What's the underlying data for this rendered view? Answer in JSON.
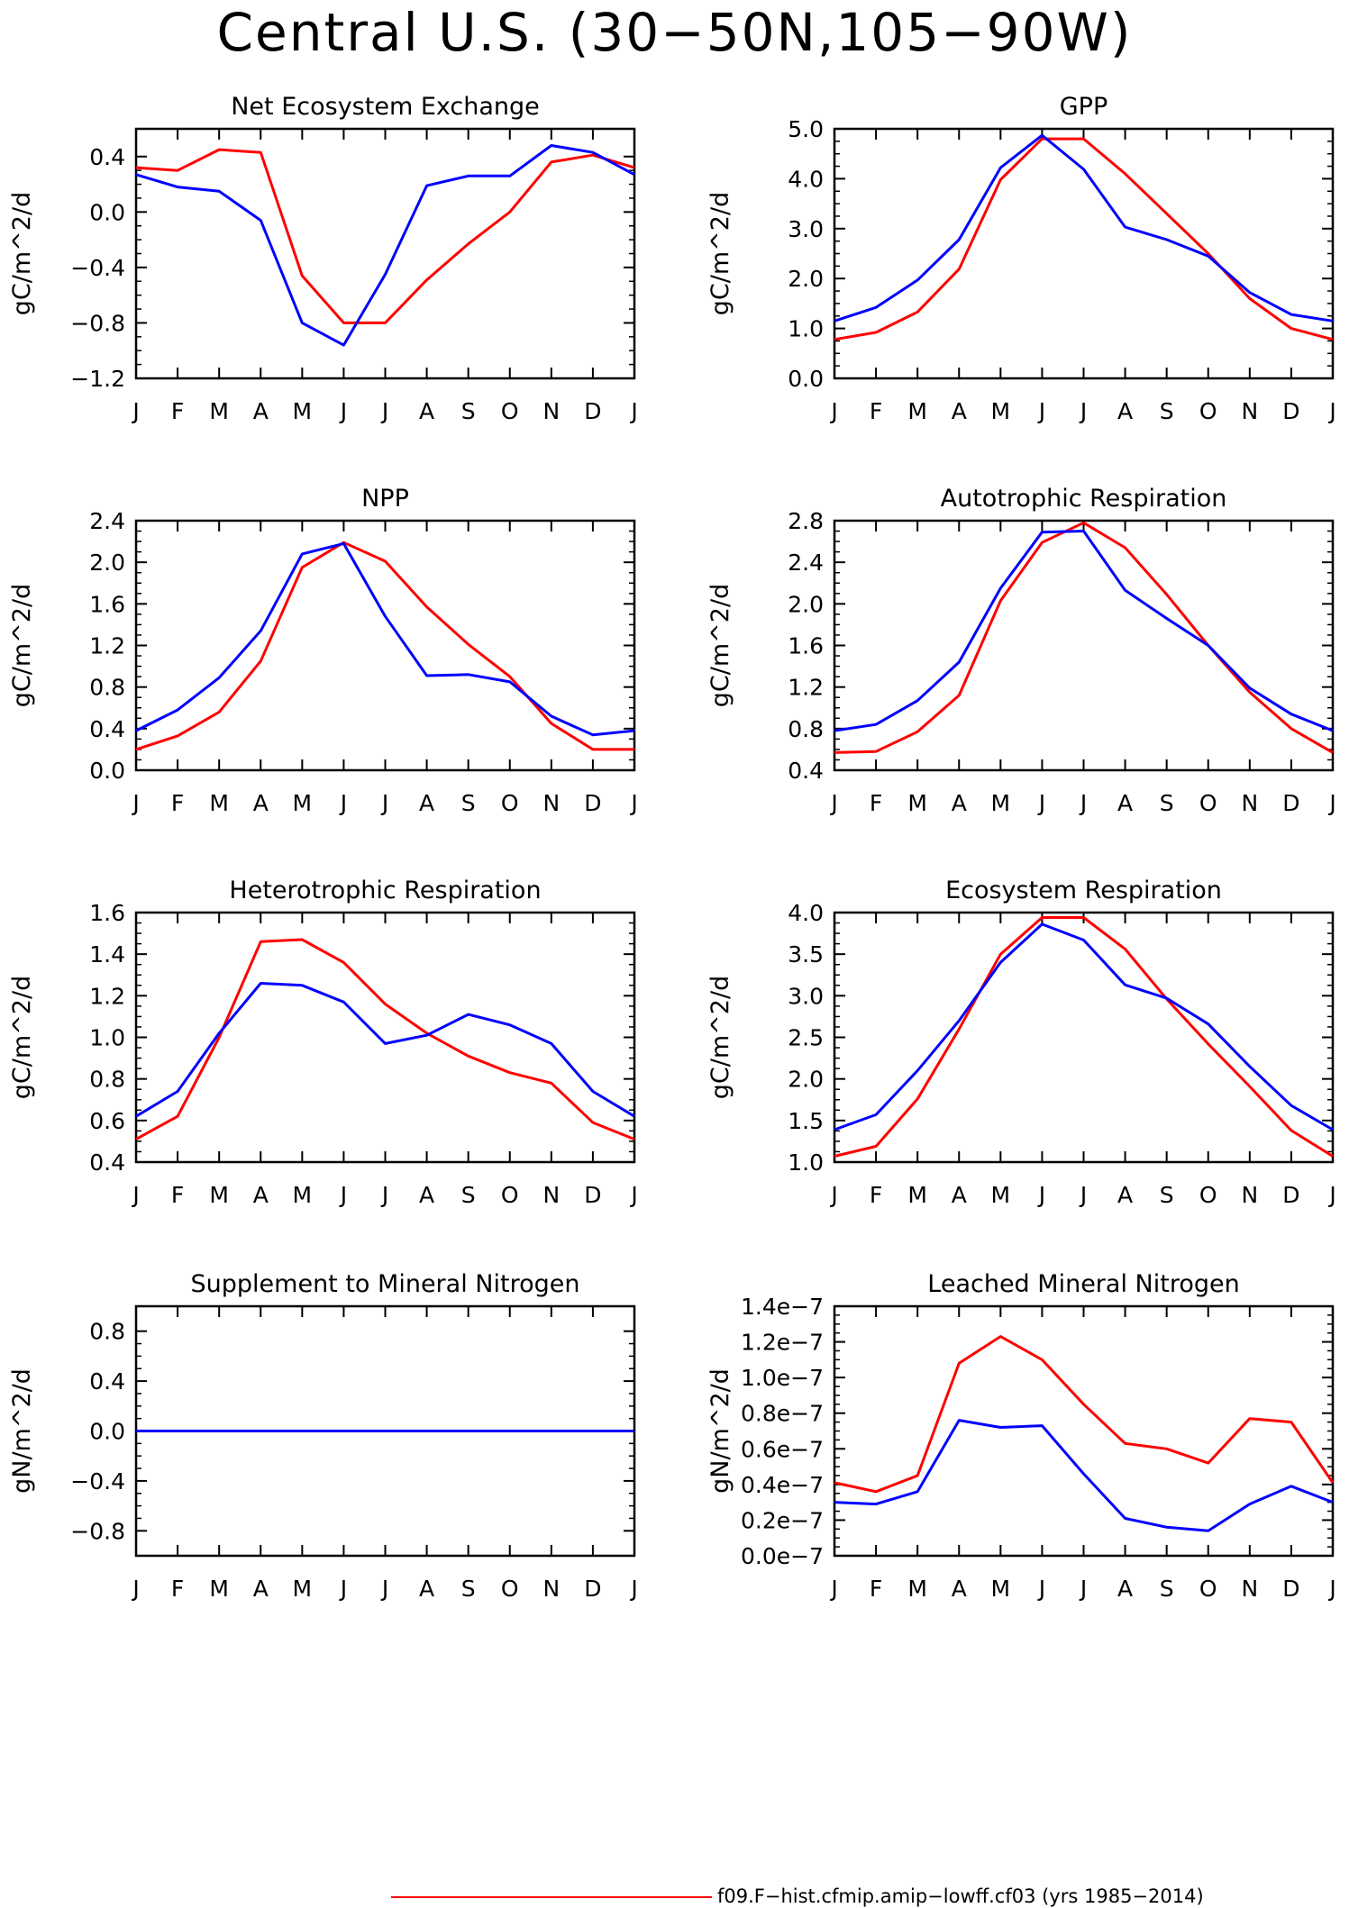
{
  "page_title": "Central U.S. (30−50N,105−90W)",
  "colors": {
    "red": "#ff0000",
    "blue": "#0000ff"
  },
  "legend": {
    "red_label": "f09.F−hist.cfmip.amip−lowff.cf03 (yrs 1985−2014)"
  },
  "month_labels": [
    "J",
    "F",
    "M",
    "A",
    "M",
    "J",
    "J",
    "A",
    "S",
    "O",
    "N",
    "D",
    "J"
  ],
  "chart_data": [
    {
      "type": "line",
      "title": "Net Ecosystem Exchange",
      "ylabel": "gC/m^2/d",
      "ylim": [
        -1.2,
        0.6
      ],
      "yticks": [
        -1.2,
        -0.8,
        -0.4,
        0.0,
        0.4
      ],
      "ytick_labels": [
        "−1.2",
        "−0.8",
        "−0.4",
        "0.0",
        "0.4"
      ],
      "x": [
        "J",
        "F",
        "M",
        "A",
        "M",
        "J",
        "J",
        "A",
        "S",
        "O",
        "N",
        "D",
        "J"
      ],
      "series": [
        {
          "color": "red",
          "values": [
            0.32,
            0.3,
            0.45,
            0.43,
            -0.46,
            -0.8,
            -0.8,
            -0.49,
            -0.23,
            0.0,
            0.36,
            0.41,
            0.32
          ]
        },
        {
          "color": "blue",
          "values": [
            0.27,
            0.18,
            0.15,
            -0.06,
            -0.8,
            -0.96,
            -0.45,
            0.19,
            0.26,
            0.26,
            0.48,
            0.43,
            0.27
          ]
        }
      ]
    },
    {
      "type": "line",
      "title": "GPP",
      "ylabel": "gC/m^2/d",
      "ylim": [
        0.0,
        5.0
      ],
      "yticks": [
        0.0,
        1.0,
        2.0,
        3.0,
        4.0,
        5.0
      ],
      "ytick_labels": [
        "0.0",
        "1.0",
        "2.0",
        "3.0",
        "4.0",
        "5.0"
      ],
      "x": [
        "J",
        "F",
        "M",
        "A",
        "M",
        "J",
        "J",
        "A",
        "S",
        "O",
        "N",
        "D",
        "J"
      ],
      "series": [
        {
          "color": "red",
          "values": [
            0.78,
            0.92,
            1.33,
            2.19,
            3.98,
            4.8,
            4.8,
            4.1,
            3.3,
            2.5,
            1.6,
            1.0,
            0.78
          ]
        },
        {
          "color": "blue",
          "values": [
            1.15,
            1.42,
            1.97,
            2.78,
            4.22,
            4.87,
            4.19,
            3.03,
            2.78,
            2.45,
            1.72,
            1.28,
            1.15
          ]
        }
      ]
    },
    {
      "type": "line",
      "title": "NPP",
      "ylabel": "gC/m^2/d",
      "ylim": [
        0.0,
        2.4
      ],
      "yticks": [
        0.0,
        0.4,
        0.8,
        1.2,
        1.6,
        2.0,
        2.4
      ],
      "ytick_labels": [
        "0.0",
        "0.4",
        "0.8",
        "1.2",
        "1.6",
        "2.0",
        "2.4"
      ],
      "x": [
        "J",
        "F",
        "M",
        "A",
        "M",
        "J",
        "J",
        "A",
        "S",
        "O",
        "N",
        "D",
        "J"
      ],
      "series": [
        {
          "color": "red",
          "values": [
            0.2,
            0.33,
            0.56,
            1.05,
            1.95,
            2.19,
            2.01,
            1.57,
            1.21,
            0.9,
            0.45,
            0.2,
            0.2
          ]
        },
        {
          "color": "blue",
          "values": [
            0.38,
            0.58,
            0.89,
            1.34,
            2.08,
            2.18,
            1.48,
            0.91,
            0.92,
            0.85,
            0.52,
            0.34,
            0.38
          ]
        }
      ]
    },
    {
      "type": "line",
      "title": "Autotrophic Respiration",
      "ylabel": "gC/m^2/d",
      "ylim": [
        0.4,
        2.8
      ],
      "yticks": [
        0.4,
        0.8,
        1.2,
        1.6,
        2.0,
        2.4,
        2.8
      ],
      "ytick_labels": [
        "0.4",
        "0.8",
        "1.2",
        "1.6",
        "2.0",
        "2.4",
        "2.8"
      ],
      "x": [
        "J",
        "F",
        "M",
        "A",
        "M",
        "J",
        "J",
        "A",
        "S",
        "O",
        "N",
        "D",
        "J"
      ],
      "series": [
        {
          "color": "red",
          "values": [
            0.57,
            0.58,
            0.77,
            1.12,
            2.03,
            2.59,
            2.78,
            2.54,
            2.09,
            1.6,
            1.15,
            0.8,
            0.57
          ]
        },
        {
          "color": "blue",
          "values": [
            0.78,
            0.84,
            1.07,
            1.44,
            2.15,
            2.69,
            2.7,
            2.13,
            1.86,
            1.6,
            1.19,
            0.94,
            0.78
          ]
        }
      ]
    },
    {
      "type": "line",
      "title": "Heterotrophic Respiration",
      "ylabel": "gC/m^2/d",
      "ylim": [
        0.4,
        1.6
      ],
      "yticks": [
        0.4,
        0.6,
        0.8,
        1.0,
        1.2,
        1.4,
        1.6
      ],
      "ytick_labels": [
        "0.4",
        "0.6",
        "0.8",
        "1.0",
        "1.2",
        "1.4",
        "1.6"
      ],
      "x": [
        "J",
        "F",
        "M",
        "A",
        "M",
        "J",
        "J",
        "A",
        "S",
        "O",
        "N",
        "D",
        "J"
      ],
      "series": [
        {
          "color": "red",
          "values": [
            0.51,
            0.62,
            1.0,
            1.46,
            1.47,
            1.36,
            1.16,
            1.02,
            0.91,
            0.83,
            0.78,
            0.59,
            0.51
          ]
        },
        {
          "color": "blue",
          "values": [
            0.62,
            0.74,
            1.02,
            1.26,
            1.25,
            1.17,
            0.97,
            1.01,
            1.11,
            1.06,
            0.97,
            0.74,
            0.62
          ]
        }
      ]
    },
    {
      "type": "line",
      "title": "Ecosystem Respiration",
      "ylabel": "gC/m^2/d",
      "ylim": [
        1.0,
        4.0
      ],
      "yticks": [
        1.0,
        1.5,
        2.0,
        2.5,
        3.0,
        3.5,
        4.0
      ],
      "ytick_labels": [
        "1.0",
        "1.5",
        "2.0",
        "2.5",
        "3.0",
        "3.5",
        "4.0"
      ],
      "x": [
        "J",
        "F",
        "M",
        "A",
        "M",
        "J",
        "J",
        "A",
        "S",
        "O",
        "N",
        "D",
        "J"
      ],
      "series": [
        {
          "color": "red",
          "values": [
            1.07,
            1.19,
            1.76,
            2.6,
            3.5,
            3.94,
            3.94,
            3.56,
            2.96,
            2.42,
            1.91,
            1.38,
            1.07
          ]
        },
        {
          "color": "blue",
          "values": [
            1.39,
            1.57,
            2.1,
            2.7,
            3.4,
            3.86,
            3.67,
            3.13,
            2.97,
            2.66,
            2.15,
            1.68,
            1.39
          ]
        }
      ]
    },
    {
      "type": "line",
      "title": "Supplement to Mineral Nitrogen",
      "ylabel": "gN/m^2/d",
      "ylim": [
        -1.0,
        1.0
      ],
      "yticks": [
        -0.8,
        -0.4,
        0.0,
        0.4,
        0.8
      ],
      "ytick_labels": [
        "−0.8",
        "−0.4",
        "0.0",
        "0.4",
        "0.8"
      ],
      "x": [
        "J",
        "F",
        "M",
        "A",
        "M",
        "J",
        "J",
        "A",
        "S",
        "O",
        "N",
        "D",
        "J"
      ],
      "series": [
        {
          "color": "red",
          "values": [
            0,
            0,
            0,
            0,
            0,
            0,
            0,
            0,
            0,
            0,
            0,
            0,
            0
          ]
        },
        {
          "color": "blue",
          "values": [
            0,
            0,
            0,
            0,
            0,
            0,
            0,
            0,
            0,
            0,
            0,
            0,
            0
          ]
        }
      ]
    },
    {
      "type": "line",
      "title": "Leached Mineral Nitrogen",
      "ylabel": "gN/m^2/d",
      "ylim": [
        0.0,
        1.4e-07
      ],
      "yticks": [
        0.0,
        2e-08,
        4e-08,
        6e-08,
        8e-08,
        1e-07,
        1.2e-07,
        1.4e-07
      ],
      "ytick_labels": [
        "0.0e−7",
        "0.2e−7",
        "0.4e−7",
        "0.6e−7",
        "0.8e−7",
        "1.0e−7",
        "1.2e−7",
        "1.4e−7"
      ],
      "x": [
        "J",
        "F",
        "M",
        "A",
        "M",
        "J",
        "J",
        "A",
        "S",
        "O",
        "N",
        "D",
        "J"
      ],
      "series": [
        {
          "color": "red",
          "values": [
            4.1e-08,
            3.6e-08,
            4.5e-08,
            1.08e-07,
            1.23e-07,
            1.1e-07,
            8.5e-08,
            6.3e-08,
            6e-08,
            5.2e-08,
            7.7e-08,
            7.5e-08,
            4.1e-08
          ]
        },
        {
          "color": "blue",
          "values": [
            3e-08,
            2.9e-08,
            3.6e-08,
            7.6e-08,
            7.2e-08,
            7.3e-08,
            4.6e-08,
            2.1e-08,
            1.6e-08,
            1.4e-08,
            2.9e-08,
            3.9e-08,
            3e-08
          ]
        }
      ]
    }
  ]
}
